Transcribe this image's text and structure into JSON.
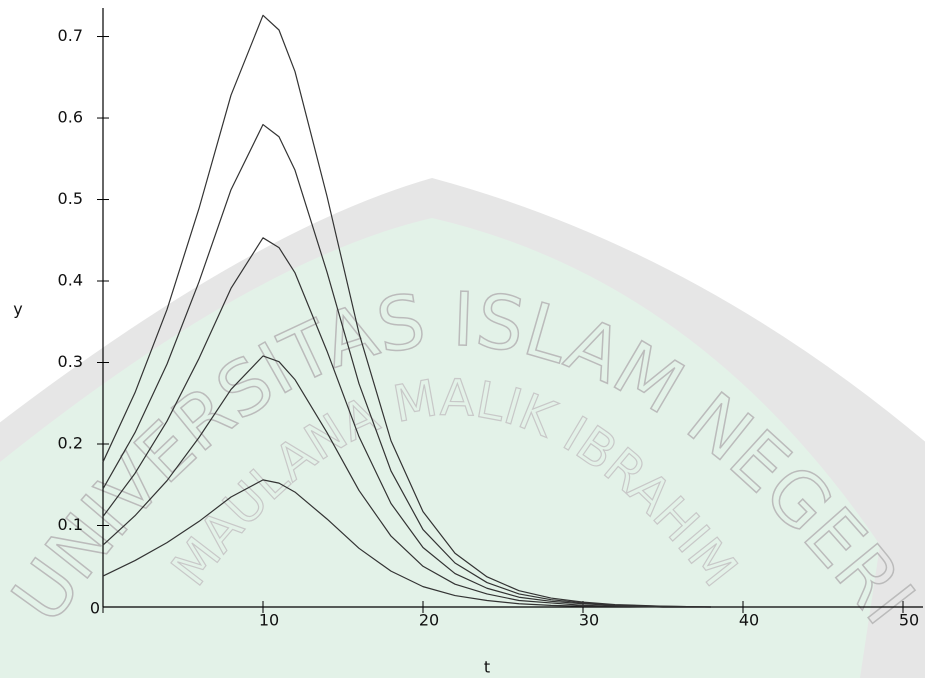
{
  "chart_data": {
    "type": "line",
    "x_label": "t",
    "y_label": "y",
    "x": [
      0,
      2,
      4,
      6,
      8,
      10,
      11,
      12,
      14,
      16,
      18,
      20,
      22,
      24,
      26,
      28,
      30,
      32,
      35,
      38
    ],
    "series": [
      {
        "color": "#333333",
        "values": [
          0.178,
          0.263,
          0.365,
          0.489,
          0.628,
          0.726,
          0.708,
          0.657,
          0.504,
          0.336,
          0.204,
          0.117,
          0.066,
          0.037,
          0.02,
          0.011,
          0.006,
          0.003,
          0.001,
          0
        ]
      },
      {
        "color": "#333333",
        "values": [
          0.145,
          0.214,
          0.298,
          0.399,
          0.512,
          0.592,
          0.577,
          0.536,
          0.411,
          0.274,
          0.167,
          0.095,
          0.054,
          0.03,
          0.016,
          0.009,
          0.005,
          0.002,
          0.001,
          0
        ]
      },
      {
        "color": "#333333",
        "values": [
          0.111,
          0.164,
          0.228,
          0.305,
          0.391,
          0.453,
          0.441,
          0.41,
          0.314,
          0.209,
          0.127,
          0.073,
          0.041,
          0.023,
          0.012,
          0.007,
          0.004,
          0.002,
          0,
          0
        ]
      },
      {
        "color": "#333333",
        "values": [
          0.076,
          0.112,
          0.155,
          0.208,
          0.267,
          0.308,
          0.301,
          0.279,
          0.214,
          0.143,
          0.087,
          0.05,
          0.028,
          0.016,
          0.008,
          0.005,
          0.002,
          0.001,
          0,
          0
        ]
      },
      {
        "color": "#333333",
        "values": [
          0.038,
          0.057,
          0.079,
          0.105,
          0.135,
          0.156,
          0.152,
          0.141,
          0.108,
          0.072,
          0.044,
          0.025,
          0.014,
          0.008,
          0.004,
          0.002,
          0.001,
          0.001,
          0,
          0
        ]
      }
    ],
    "xlim": [
      0,
      50
    ],
    "ylim": [
      0,
      0.735
    ],
    "xticks": [
      0,
      10,
      20,
      30,
      40,
      50
    ],
    "yticks": [
      0.1,
      0.2,
      0.3,
      0.4,
      0.5,
      0.6,
      0.7
    ],
    "grid": false,
    "watermark": {
      "outer": "UNIVERSITAS ISLAM NEGERI",
      "inner": "MAULANA MALIK IBRAHIM"
    }
  }
}
